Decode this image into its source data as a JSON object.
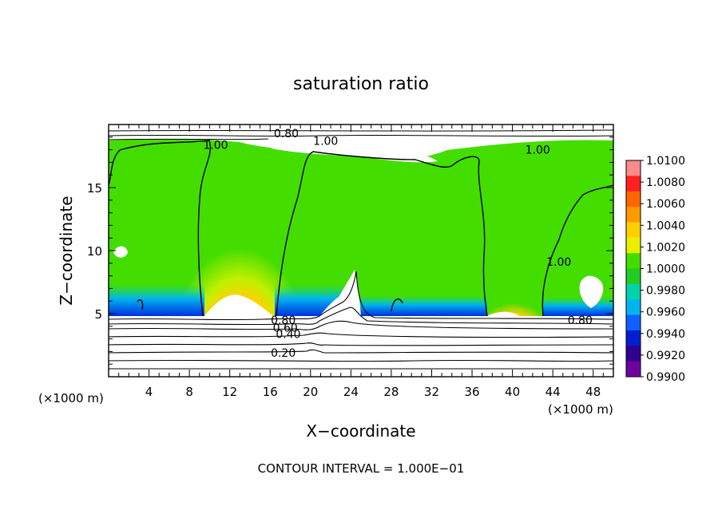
{
  "chart_data": {
    "type": "heatmap",
    "title": "saturation ratio",
    "xlabel": "X−coordinate",
    "ylabel": "Z−coordinate",
    "x_unit_left": "(×1000 m)",
    "x_unit_right": "(×1000 m)",
    "xlim": [
      0,
      50
    ],
    "ylim": [
      0,
      20
    ],
    "x_ticks": [
      4,
      8,
      12,
      16,
      20,
      24,
      28,
      32,
      36,
      40,
      44,
      48
    ],
    "y_ticks": [
      5,
      10,
      15
    ],
    "footer": "CONTOUR INTERVAL = 1.000E−01",
    "colorbar": {
      "levels": [
        1.01,
        1.008,
        1.006,
        1.004,
        1.002,
        1.0,
        0.998,
        0.996,
        0.994,
        0.992,
        0.99
      ],
      "labels": [
        "1.0100",
        "1.0080",
        "1.0060",
        "1.0040",
        "1.0020",
        "1.0000",
        "0.9980",
        "0.9960",
        "0.9940",
        "0.9920",
        "0.9900"
      ],
      "colors": [
        "#ff8a8a",
        "#ff2020",
        "#ff6600",
        "#ff9a00",
        "#ffd000",
        "#e8f000",
        "#44dd00",
        "#22cc22",
        "#00d4a8",
        "#00b4ee",
        "#1060ff",
        "#0020d0",
        "#300090",
        "#7000a0"
      ]
    },
    "contour_labels": [
      {
        "text": "0.80",
        "x": 17.6,
        "z": 19.3
      },
      {
        "text": "1.00",
        "x": 21.5,
        "z": 18.7
      },
      {
        "text": "1.00",
        "x": 10.6,
        "z": 18.4
      },
      {
        "text": "1.00",
        "x": 42.5,
        "z": 18.0
      },
      {
        "text": "1.00",
        "x": 44.6,
        "z": 9.1
      },
      {
        "text": "0.80",
        "x": 17.3,
        "z": 4.5
      },
      {
        "text": "0.60",
        "x": 17.5,
        "z": 3.9
      },
      {
        "text": "0.40",
        "x": 17.8,
        "z": 3.4
      },
      {
        "text": "0.20",
        "x": 17.3,
        "z": 1.9
      },
      {
        "text": "0.80",
        "x": 46.7,
        "z": 4.5
      }
    ]
  }
}
